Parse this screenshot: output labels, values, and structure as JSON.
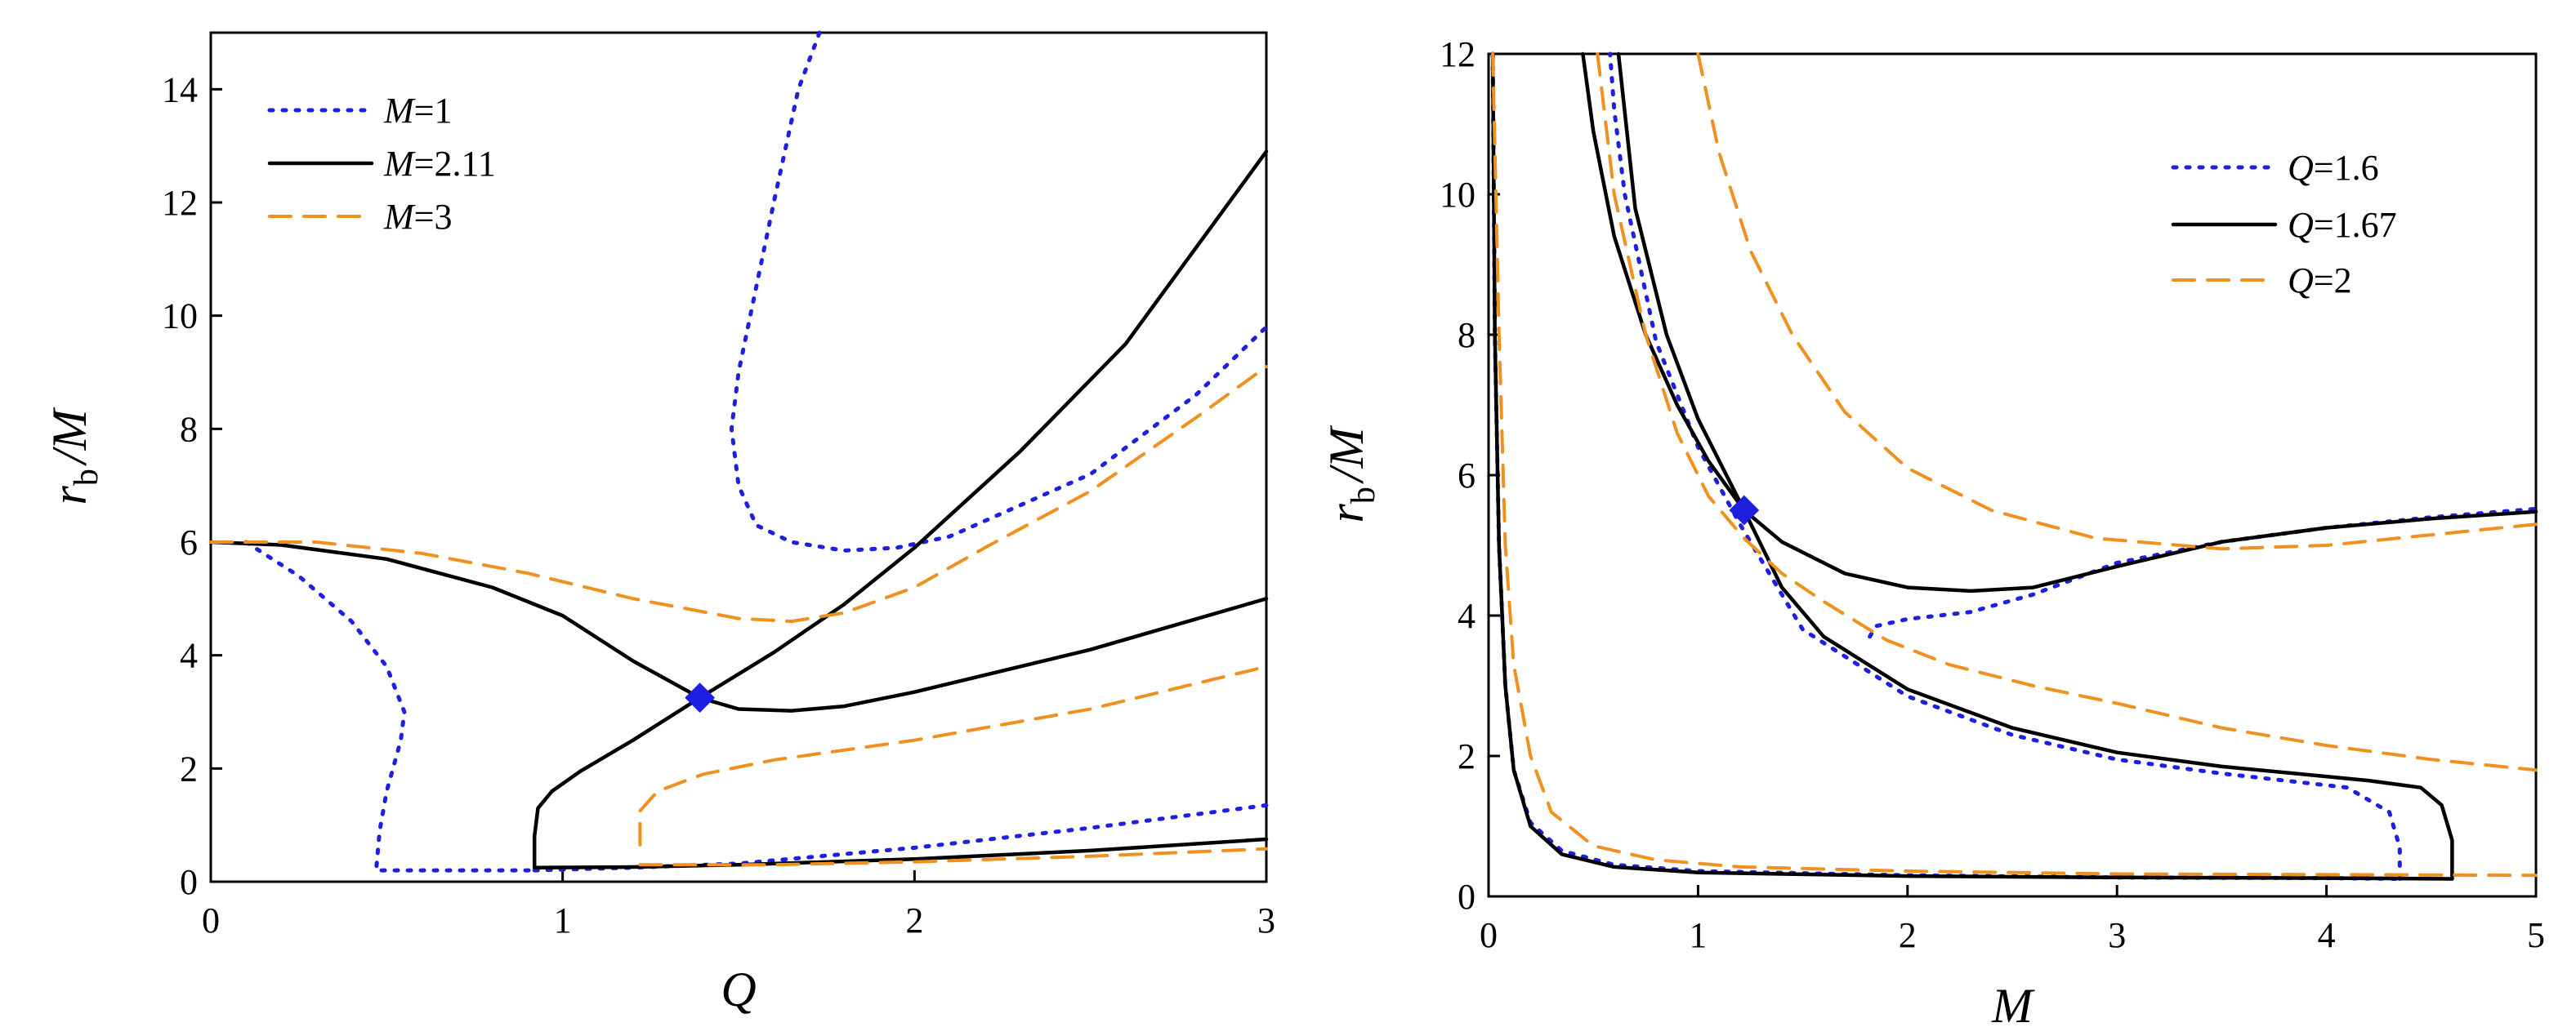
{
  "colors": {
    "blue": "#1f1fe0",
    "black": "#000000",
    "orange": "#f0901e",
    "marker": "#1f1fe0"
  },
  "chart_data": [
    {
      "type": "line",
      "xlabel": "Q",
      "ylabel_main": "r",
      "ylabel_sub": "b",
      "ylabel_tail": "/M",
      "xlim": [
        0,
        3
      ],
      "ylim": [
        0,
        15
      ],
      "xticks": [
        "0",
        "1",
        "2",
        "3"
      ],
      "yticks": [
        "0",
        "2",
        "4",
        "6",
        "8",
        "10",
        "12",
        "14"
      ],
      "legend_position": "top-left",
      "legend": [
        {
          "var": "M",
          "eq": "=1",
          "style": "dotted",
          "color": "blue"
        },
        {
          "var": "M",
          "eq": "=2.11",
          "style": "solid",
          "color": "black"
        },
        {
          "var": "M",
          "eq": "=3",
          "style": "dashed",
          "color": "orange"
        }
      ],
      "marker": [
        1.39,
        3.25
      ],
      "series": [
        {
          "name": "M=1",
          "style": "dotted",
          "color": "blue",
          "curves": [
            [
              [
                0.1,
                6.0
              ],
              [
                0.25,
                5.4
              ],
              [
                0.4,
                4.6
              ],
              [
                0.5,
                3.8
              ],
              [
                0.55,
                3.0
              ],
              [
                0.54,
                2.5
              ],
              [
                0.5,
                1.6
              ],
              [
                0.48,
                0.9
              ],
              [
                0.47,
                0.2
              ],
              [
                0.6,
                0.2
              ],
              [
                0.8,
                0.2
              ],
              [
                0.92,
                0.2
              ]
            ],
            [
              [
                0.92,
                0.2
              ],
              [
                1.2,
                0.25
              ],
              [
                1.5,
                0.32
              ],
              [
                2.0,
                0.6
              ],
              [
                2.5,
                0.95
              ],
              [
                3.0,
                1.35
              ]
            ],
            [
              [
                1.73,
                15.0
              ],
              [
                1.67,
                14.0
              ],
              [
                1.6,
                12.0
              ],
              [
                1.5,
                9.0
              ],
              [
                1.48,
                8.0
              ],
              [
                1.5,
                7.0
              ],
              [
                1.55,
                6.3
              ],
              [
                1.65,
                6.0
              ],
              [
                1.8,
                5.85
              ],
              [
                1.95,
                5.9
              ],
              [
                2.1,
                6.1
              ],
              [
                2.5,
                7.2
              ],
              [
                2.8,
                8.6
              ],
              [
                3.0,
                9.8
              ]
            ]
          ]
        },
        {
          "name": "M=2.11",
          "style": "solid",
          "color": "black",
          "curves": [
            [
              [
                0,
                6.0
              ],
              [
                0.2,
                5.95
              ],
              [
                0.5,
                5.7
              ],
              [
                0.8,
                5.2
              ],
              [
                1.0,
                4.7
              ],
              [
                1.2,
                3.9
              ],
              [
                1.39,
                3.25
              ],
              [
                1.5,
                3.05
              ],
              [
                1.65,
                3.02
              ],
              [
                1.8,
                3.1
              ],
              [
                2.0,
                3.35
              ],
              [
                2.5,
                4.1
              ],
              [
                3.0,
                5.0
              ]
            ],
            [
              [
                0.92,
                0.25
              ],
              [
                0.92,
                0.8
              ],
              [
                0.93,
                1.3
              ],
              [
                0.97,
                1.6
              ],
              [
                1.05,
                1.95
              ],
              [
                1.2,
                2.5
              ],
              [
                1.39,
                3.25
              ],
              [
                1.6,
                4.05
              ],
              [
                1.8,
                4.9
              ],
              [
                2.0,
                5.9
              ],
              [
                2.3,
                7.6
              ],
              [
                2.6,
                9.5
              ],
              [
                3.0,
                12.9
              ]
            ],
            [
              [
                0.92,
                0.25
              ],
              [
                1.2,
                0.26
              ],
              [
                1.5,
                0.3
              ],
              [
                2.0,
                0.4
              ],
              [
                2.5,
                0.55
              ],
              [
                3.0,
                0.75
              ]
            ]
          ]
        },
        {
          "name": "M=3",
          "style": "dashed",
          "color": "orange",
          "curves": [
            [
              [
                0,
                6.0
              ],
              [
                0.3,
                6.0
              ],
              [
                0.6,
                5.8
              ],
              [
                0.9,
                5.45
              ],
              [
                1.2,
                5.0
              ],
              [
                1.5,
                4.65
              ],
              [
                1.65,
                4.6
              ],
              [
                1.8,
                4.75
              ],
              [
                2.0,
                5.2
              ],
              [
                2.2,
                5.9
              ],
              [
                2.5,
                6.9
              ],
              [
                2.8,
                8.2
              ],
              [
                3.0,
                9.1
              ]
            ],
            [
              [
                1.22,
                0.65
              ],
              [
                1.22,
                1.25
              ],
              [
                1.27,
                1.6
              ],
              [
                1.4,
                1.9
              ],
              [
                1.6,
                2.15
              ],
              [
                2.0,
                2.5
              ],
              [
                2.5,
                3.05
              ],
              [
                3.0,
                3.8
              ]
            ],
            [
              [
                1.22,
                0.3
              ],
              [
                1.6,
                0.3
              ],
              [
                2.0,
                0.35
              ],
              [
                2.5,
                0.45
              ],
              [
                3.0,
                0.58
              ]
            ]
          ]
        }
      ]
    },
    {
      "type": "line",
      "xlabel": "M",
      "ylabel_main": "r",
      "ylabel_sub": "b",
      "ylabel_tail": "/M",
      "xlim": [
        0,
        5
      ],
      "ylim": [
        0,
        12
      ],
      "xticks": [
        "0",
        "1",
        "2",
        "3",
        "4",
        "5"
      ],
      "yticks": [
        "0",
        "2",
        "4",
        "6",
        "8",
        "10",
        "12"
      ],
      "legend_position": "top-right",
      "legend": [
        {
          "var": "Q",
          "eq": "=1.6",
          "style": "dotted",
          "color": "blue"
        },
        {
          "var": "Q",
          "eq": "=1.67",
          "style": "solid",
          "color": "black"
        },
        {
          "var": "Q",
          "eq": "=2",
          "style": "dashed",
          "color": "orange"
        }
      ],
      "marker": [
        1.22,
        5.5
      ],
      "series": [
        {
          "name": "Q=1.6",
          "style": "dotted",
          "color": "blue",
          "curves": [
            [
              [
                0.02,
                12.0
              ],
              [
                0.03,
                8.0
              ],
              [
                0.05,
                5.0
              ],
              [
                0.08,
                3.0
              ],
              [
                0.12,
                1.8
              ],
              [
                0.2,
                1.05
              ],
              [
                0.35,
                0.65
              ],
              [
                0.6,
                0.45
              ],
              [
                1.0,
                0.36
              ],
              [
                2.0,
                0.3
              ],
              [
                3.0,
                0.27
              ],
              [
                4.0,
                0.26
              ],
              [
                4.35,
                0.25
              ]
            ],
            [
              [
                4.35,
                0.25
              ],
              [
                4.35,
                0.7
              ],
              [
                4.3,
                1.2
              ],
              [
                4.1,
                1.55
              ],
              [
                3.5,
                1.75
              ],
              [
                3.0,
                1.95
              ],
              [
                2.5,
                2.3
              ],
              [
                2.0,
                2.85
              ],
              [
                1.5,
                3.8
              ],
              [
                1.2,
                5.3
              ],
              [
                1.0,
                6.4
              ],
              [
                0.8,
                7.9
              ],
              [
                0.65,
                10.0
              ],
              [
                0.6,
                11.2
              ],
              [
                0.58,
                12.0
              ]
            ],
            [
              [
                1.82,
                3.7
              ],
              [
                1.85,
                3.85
              ],
              [
                2.0,
                3.95
              ],
              [
                2.3,
                4.05
              ],
              [
                2.6,
                4.3
              ],
              [
                3.0,
                4.75
              ],
              [
                3.5,
                5.05
              ],
              [
                4.0,
                5.25
              ],
              [
                4.5,
                5.4
              ],
              [
                5.0,
                5.52
              ]
            ]
          ]
        },
        {
          "name": "Q=1.67",
          "style": "solid",
          "color": "black",
          "curves": [
            [
              [
                0.02,
                12.0
              ],
              [
                0.03,
                8.0
              ],
              [
                0.05,
                5.0
              ],
              [
                0.08,
                3.0
              ],
              [
                0.12,
                1.8
              ],
              [
                0.2,
                1.0
              ],
              [
                0.35,
                0.6
              ],
              [
                0.6,
                0.42
              ],
              [
                1.0,
                0.34
              ],
              [
                2.0,
                0.29
              ],
              [
                3.0,
                0.27
              ],
              [
                4.0,
                0.26
              ],
              [
                4.6,
                0.25
              ]
            ],
            [
              [
                4.6,
                0.25
              ],
              [
                4.6,
                0.8
              ],
              [
                4.55,
                1.3
              ],
              [
                4.45,
                1.55
              ],
              [
                4.2,
                1.65
              ],
              [
                3.5,
                1.85
              ],
              [
                3.0,
                2.05
              ],
              [
                2.5,
                2.4
              ],
              [
                2.0,
                2.95
              ],
              [
                1.6,
                3.7
              ],
              [
                1.4,
                4.4
              ],
              [
                1.22,
                5.5
              ],
              [
                1.0,
                6.8
              ],
              [
                0.85,
                8.0
              ],
              [
                0.7,
                9.8
              ],
              [
                0.62,
                12.0
              ]
            ],
            [
              [
                0.45,
                12.0
              ],
              [
                0.5,
                10.9
              ],
              [
                0.6,
                9.4
              ],
              [
                0.75,
                8.0
              ],
              [
                0.9,
                7.0
              ],
              [
                1.05,
                6.2
              ],
              [
                1.22,
                5.5
              ],
              [
                1.4,
                5.05
              ],
              [
                1.7,
                4.6
              ],
              [
                2.0,
                4.4
              ],
              [
                2.3,
                4.35
              ],
              [
                2.6,
                4.4
              ],
              [
                3.0,
                4.7
              ],
              [
                3.5,
                5.05
              ],
              [
                4.0,
                5.25
              ],
              [
                4.5,
                5.38
              ],
              [
                5.0,
                5.48
              ]
            ]
          ]
        },
        {
          "name": "Q=2",
          "style": "dashed",
          "color": "orange",
          "curves": [
            [
              [
                0.02,
                12.0
              ],
              [
                0.05,
                8.0
              ],
              [
                0.08,
                5.0
              ],
              [
                0.12,
                3.3
              ],
              [
                0.2,
                2.0
              ],
              [
                0.3,
                1.2
              ],
              [
                0.5,
                0.72
              ],
              [
                0.8,
                0.52
              ],
              [
                1.2,
                0.42
              ],
              [
                2.0,
                0.36
              ],
              [
                3.0,
                0.32
              ],
              [
                4.0,
                0.31
              ],
              [
                5.0,
                0.3
              ]
            ],
            [
              [
                0.52,
                12.0
              ],
              [
                0.6,
                10.0
              ],
              [
                0.75,
                8.0
              ],
              [
                0.9,
                6.6
              ],
              [
                1.05,
                5.7
              ],
              [
                1.22,
                5.1
              ],
              [
                1.4,
                4.6
              ],
              [
                1.6,
                4.2
              ],
              [
                1.9,
                3.65
              ],
              [
                2.2,
                3.3
              ],
              [
                2.6,
                3.0
              ],
              [
                3.0,
                2.75
              ],
              [
                3.5,
                2.4
              ],
              [
                4.0,
                2.15
              ],
              [
                4.5,
                1.95
              ],
              [
                5.0,
                1.8
              ]
            ],
            [
              [
                1.0,
                12.0
              ],
              [
                1.1,
                10.6
              ],
              [
                1.25,
                9.2
              ],
              [
                1.45,
                8.0
              ],
              [
                1.7,
                6.9
              ],
              [
                2.0,
                6.1
              ],
              [
                2.4,
                5.5
              ],
              [
                2.9,
                5.1
              ],
              [
                3.5,
                4.95
              ],
              [
                4.0,
                5.0
              ],
              [
                4.5,
                5.15
              ],
              [
                5.0,
                5.3
              ]
            ]
          ]
        }
      ]
    }
  ]
}
